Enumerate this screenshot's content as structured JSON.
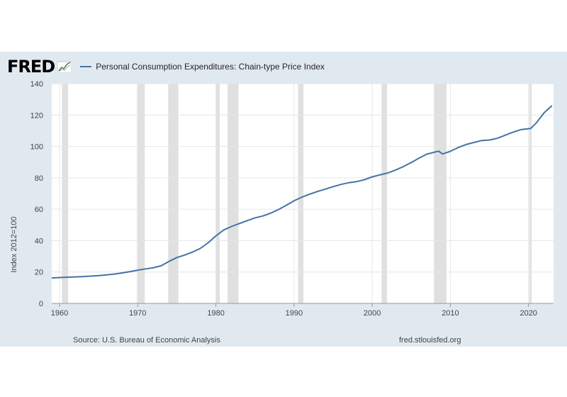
{
  "header": {
    "logo_text": "FRED",
    "logo_icon": "chart-line-icon",
    "legend_label": "Personal Consumption Expenditures: Chain-type Price Index"
  },
  "footer": {
    "source": "Source: U.S. Bureau of Economic Analysis",
    "site": "fred.stlouisfed.org"
  },
  "colors": {
    "background": "#e1e9f0",
    "plot": "#ffffff",
    "series": "#4572a7",
    "recession": "#e0e0e0"
  },
  "chart_data": {
    "type": "line",
    "title": "",
    "xlabel": "",
    "ylabel": "Index 2012=100",
    "xlim": [
      1959,
      2023.2
    ],
    "ylim": [
      0,
      140
    ],
    "x_ticks": [
      1960,
      1970,
      1980,
      1990,
      2000,
      2010,
      2020
    ],
    "y_ticks": [
      0,
      20,
      40,
      60,
      80,
      100,
      120,
      140
    ],
    "grid": true,
    "recessions": [
      [
        1960.3,
        1961.1
      ],
      [
        1969.9,
        1970.9
      ],
      [
        1973.9,
        1975.2
      ],
      [
        1980.0,
        1980.5
      ],
      [
        1981.5,
        1982.9
      ],
      [
        1990.5,
        1991.2
      ],
      [
        2001.2,
        2001.9
      ],
      [
        2007.9,
        2009.5
      ],
      [
        2020.1,
        2020.4
      ]
    ],
    "series": [
      {
        "name": "Personal Consumption Expenditures: Chain-type Price Index",
        "x": [
          1959,
          1960,
          1961,
          1962,
          1963,
          1964,
          1965,
          1966,
          1967,
          1968,
          1969,
          1970,
          1971,
          1972,
          1973,
          1974,
          1975,
          1976,
          1977,
          1978,
          1979,
          1980,
          1981,
          1982,
          1983,
          1984,
          1985,
          1986,
          1987,
          1988,
          1989,
          1990,
          1991,
          1992,
          1993,
          1994,
          1995,
          1996,
          1997,
          1998,
          1999,
          2000,
          2001,
          2002,
          2003,
          2004,
          2005,
          2006,
          2007,
          2008.5,
          2009,
          2010,
          2011,
          2012,
          2013,
          2014,
          2015,
          2016,
          2017,
          2018,
          2019,
          2020.3,
          2021,
          2022,
          2023
        ],
        "y": [
          16.2,
          16.5,
          16.7,
          16.9,
          17.1,
          17.4,
          17.7,
          18.2,
          18.7,
          19.4,
          20.3,
          21.2,
          22.0,
          22.7,
          24.0,
          26.8,
          29.2,
          30.8,
          32.7,
          35.0,
          38.6,
          43.0,
          46.8,
          49.0,
          50.9,
          52.7,
          54.5,
          55.7,
          57.5,
          59.8,
          62.5,
          65.4,
          67.7,
          69.6,
          71.3,
          72.8,
          74.4,
          75.8,
          76.9,
          77.6,
          78.8,
          80.6,
          81.9,
          83.1,
          85.0,
          87.2,
          89.8,
          92.6,
          95.1,
          97.0,
          95.2,
          96.9,
          99.3,
          101.2,
          102.5,
          103.8,
          104.1,
          105.2,
          107.1,
          109.1,
          110.7,
          111.5,
          115.0,
          121.5,
          126.0
        ]
      }
    ]
  }
}
